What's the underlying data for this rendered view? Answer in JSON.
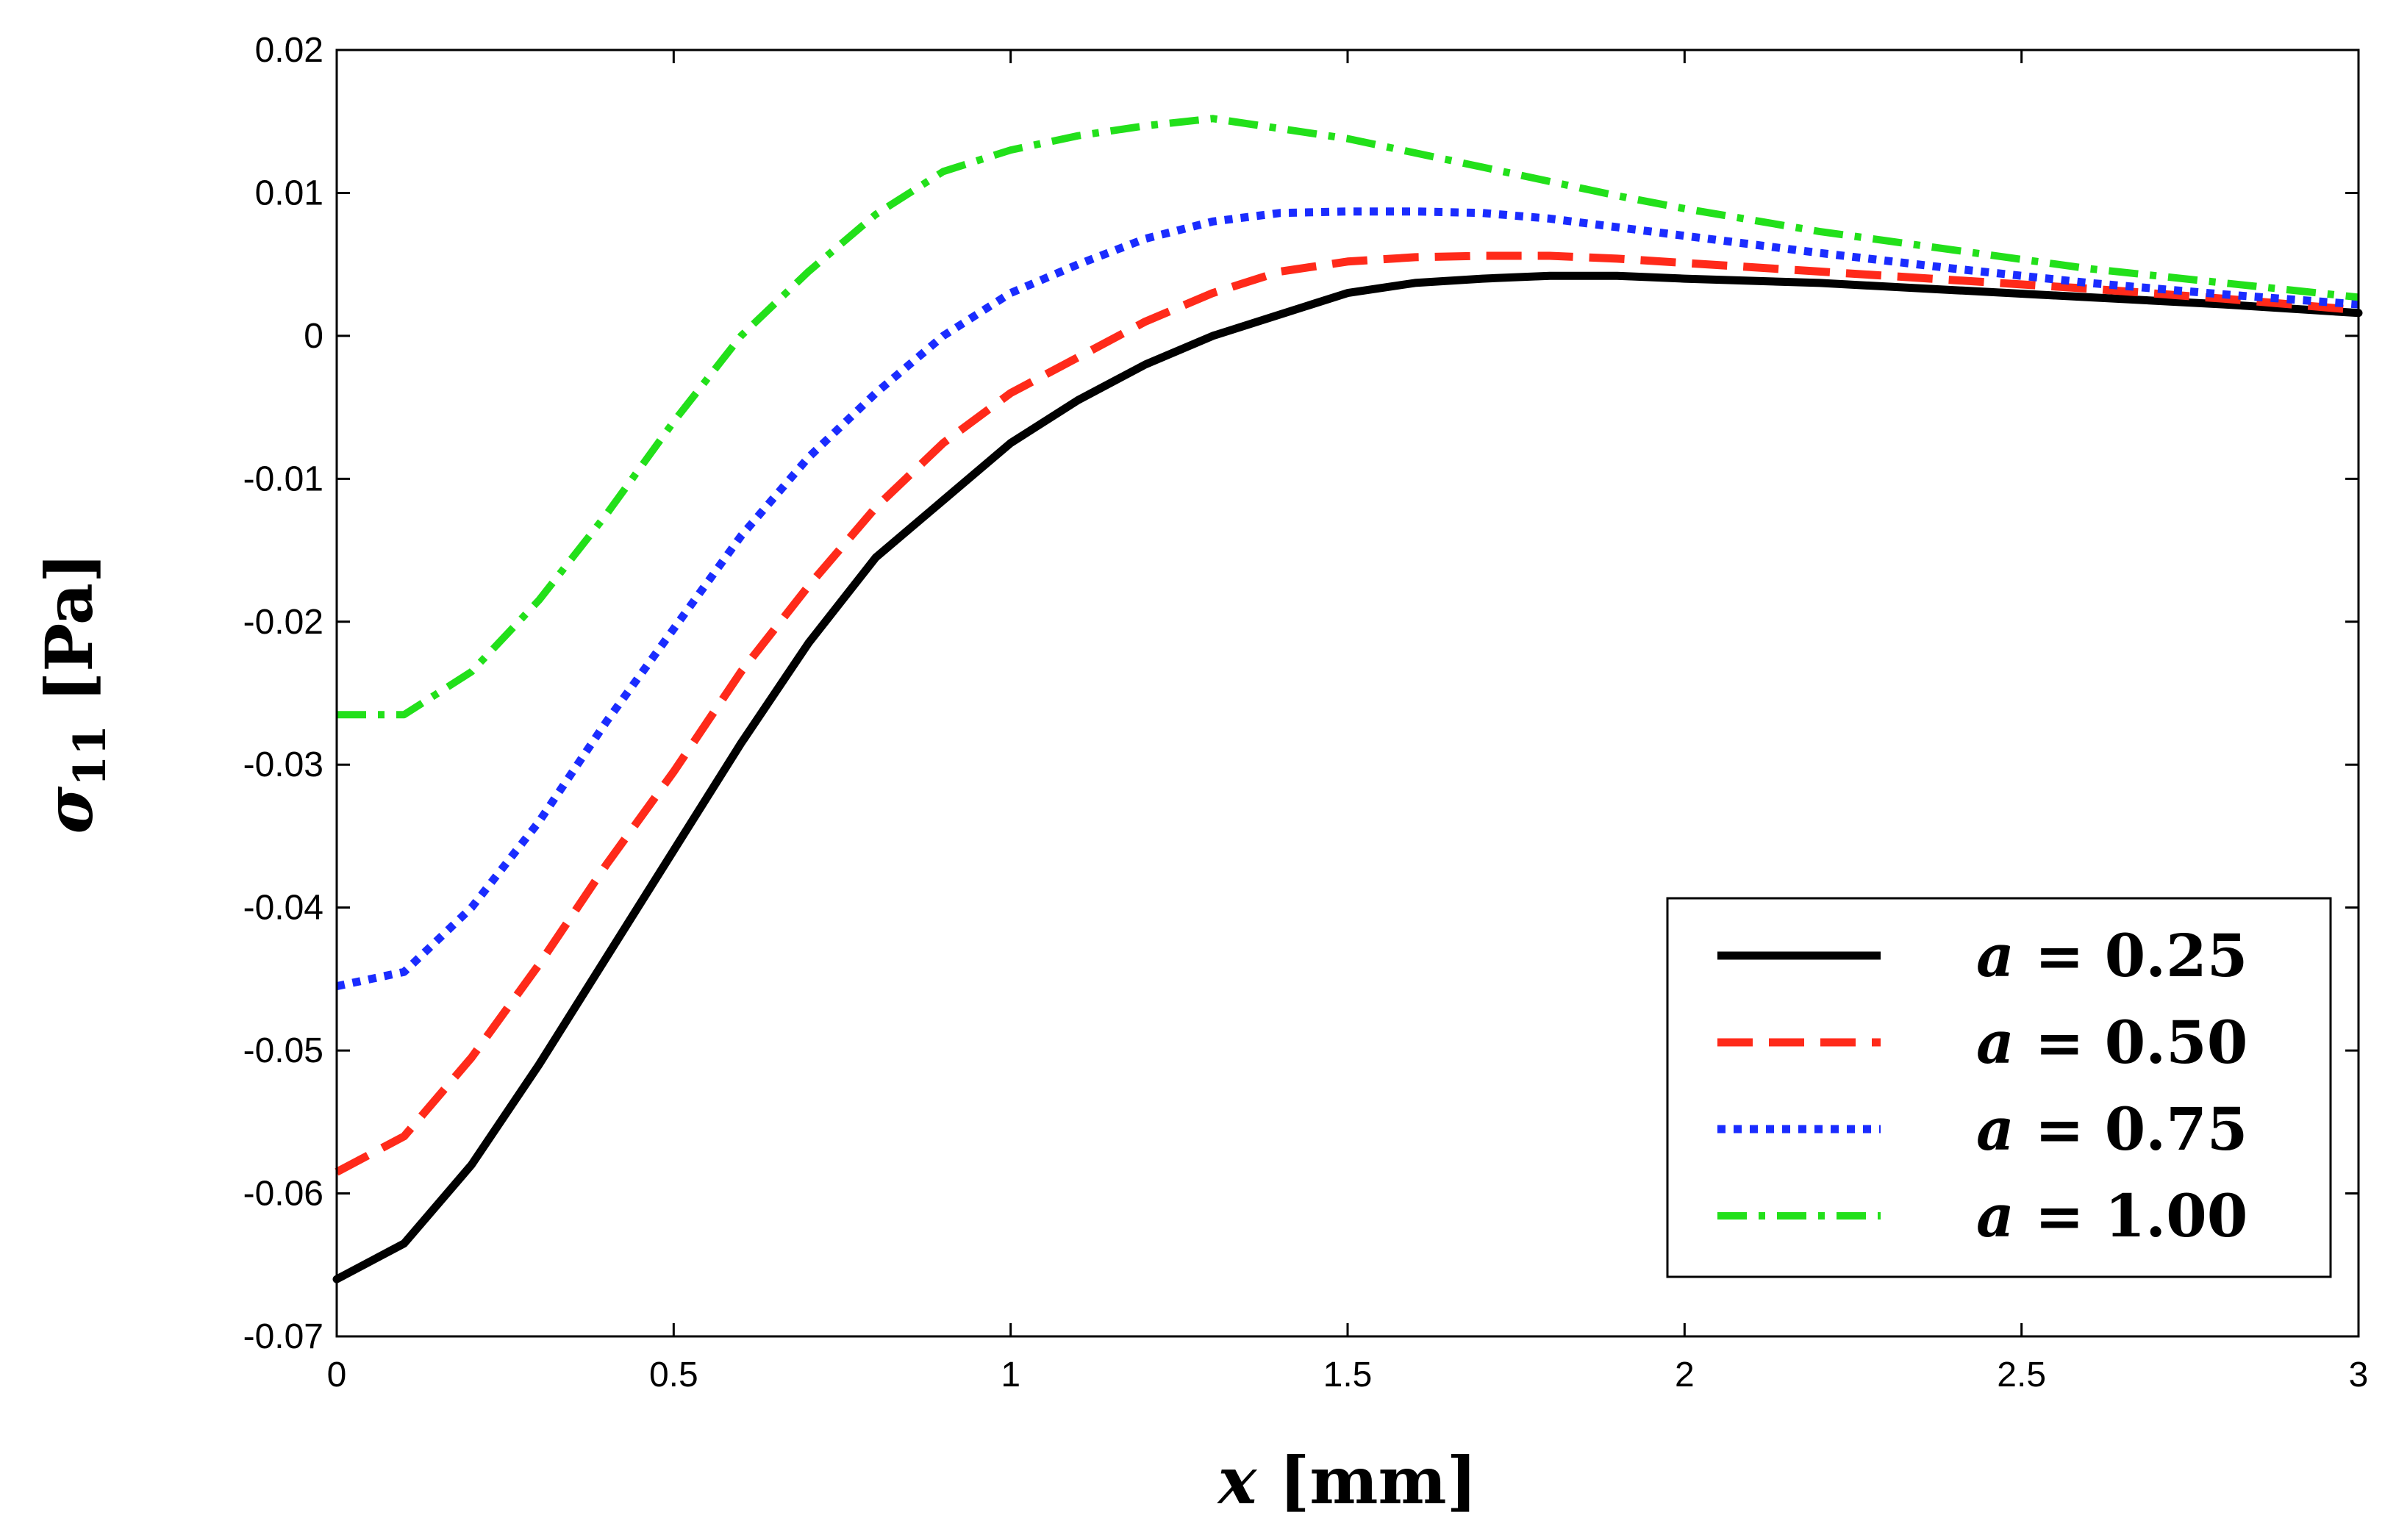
{
  "chart_data": {
    "type": "line",
    "title": "",
    "xlabel": "x [mm]",
    "xlabel_var": "x",
    "xlabel_unit": " [mm]",
    "ylabel": "σ11 [Pa]",
    "ylabel_var": "σ",
    "ylabel_sub": "11",
    "ylabel_unit": " [Pa]",
    "xlim": [
      0,
      3
    ],
    "ylim": [
      -0.07,
      0.02
    ],
    "xticks": [
      0,
      0.5,
      1,
      1.5,
      2,
      2.5,
      3
    ],
    "xtick_labels": [
      "0",
      "0.5",
      "1",
      "1.5",
      "2",
      "2.5",
      "3"
    ],
    "yticks": [
      0.02,
      0.01,
      0,
      -0.01,
      -0.02,
      -0.03,
      -0.04,
      -0.05,
      -0.06,
      -0.07
    ],
    "ytick_labels": [
      "0.02",
      "0.01",
      "0",
      "-0.01",
      "-0.02",
      "-0.03",
      "-0.04",
      "-0.05",
      "-0.06",
      "-0.07"
    ],
    "grid": false,
    "legend_position": "bottom-right",
    "x": [
      0,
      0.1,
      0.2,
      0.3,
      0.4,
      0.5,
      0.6,
      0.7,
      0.8,
      0.9,
      1.0,
      1.1,
      1.2,
      1.3,
      1.4,
      1.5,
      1.6,
      1.7,
      1.8,
      1.9,
      2.0,
      2.2,
      2.4,
      2.6,
      2.8,
      3.0
    ],
    "series": [
      {
        "name": "a = 0.25",
        "label_var": "a",
        "label_rest": " = 0.25",
        "color": "#000000",
        "style": "solid",
        "values": [
          -0.066,
          -0.0635,
          -0.058,
          -0.051,
          -0.0435,
          -0.036,
          -0.0285,
          -0.0215,
          -0.0155,
          -0.0115,
          -0.0075,
          -0.0045,
          -0.002,
          0.0,
          0.0015,
          0.003,
          0.0037,
          0.004,
          0.0042,
          0.0042,
          0.004,
          0.0037,
          0.0032,
          0.0027,
          0.0022,
          0.0016
        ]
      },
      {
        "name": "a = 0.50",
        "label_var": "a",
        "label_rest": " = 0.50",
        "color": "#ff2a1a",
        "style": "dashed",
        "values": [
          -0.0585,
          -0.056,
          -0.0505,
          -0.044,
          -0.037,
          -0.0305,
          -0.0235,
          -0.0175,
          -0.012,
          -0.0075,
          -0.004,
          -0.0015,
          0.001,
          0.003,
          0.0045,
          0.0052,
          0.0055,
          0.0056,
          0.0056,
          0.0054,
          0.0051,
          0.0045,
          0.0039,
          0.0033,
          0.0026,
          0.0018
        ]
      },
      {
        "name": "a = 0.75",
        "label_var": "a",
        "label_rest": " = 0.75",
        "color": "#1a2cff",
        "style": "dotted",
        "values": [
          -0.0455,
          -0.0445,
          -0.04,
          -0.034,
          -0.027,
          -0.0205,
          -0.014,
          -0.0085,
          -0.004,
          0.0,
          0.003,
          0.005,
          0.0068,
          0.008,
          0.0086,
          0.0087,
          0.0087,
          0.0086,
          0.0082,
          0.0076,
          0.007,
          0.0058,
          0.0047,
          0.0037,
          0.0029,
          0.0022
        ]
      },
      {
        "name": "a = 1.00",
        "label_var": "a",
        "label_rest": " = 1.00",
        "color": "#22e01a",
        "style": "dashdot",
        "values": [
          -0.0265,
          -0.0265,
          -0.0235,
          -0.0185,
          -0.0125,
          -0.006,
          0.0,
          0.0045,
          0.0085,
          0.0115,
          0.013,
          0.014,
          0.0147,
          0.0152,
          0.0145,
          0.0138,
          0.0128,
          0.0118,
          0.0108,
          0.0098,
          0.0089,
          0.0073,
          0.006,
          0.0047,
          0.0037,
          0.0027
        ]
      }
    ]
  }
}
